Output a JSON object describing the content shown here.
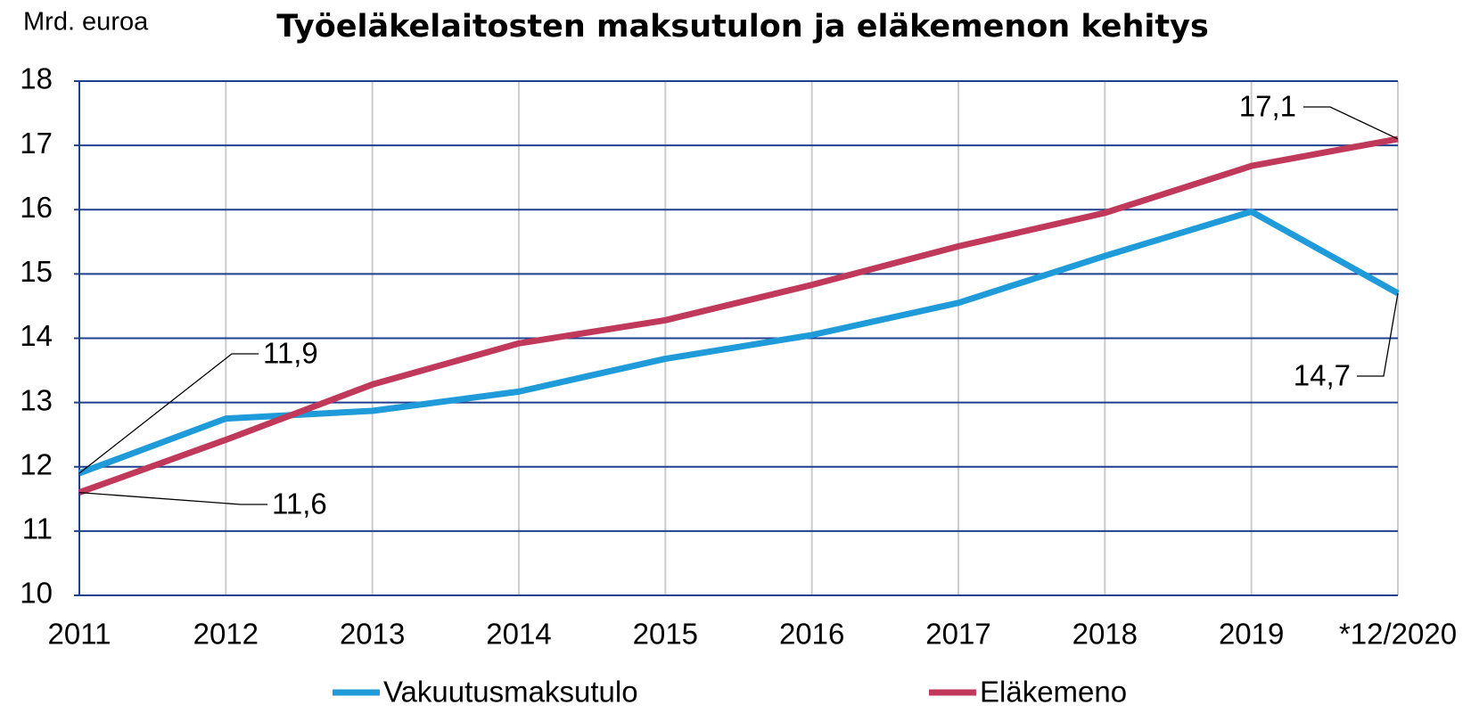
{
  "chart_data": {
    "type": "line",
    "title": "Työeläkelaitosten maksutulon ja eläkemenon kehitys",
    "y_label": "Mrd. euroa",
    "categories": [
      "2011",
      "2012",
      "2013",
      "2014",
      "2015",
      "2016",
      "2017",
      "2018",
      "2019",
      "*12/2020"
    ],
    "series": [
      {
        "name": "Vakuutusmaksutulo",
        "color": "#1f9bd9",
        "values": [
          11.9,
          12.75,
          12.87,
          13.17,
          13.68,
          14.05,
          14.55,
          15.28,
          15.97,
          14.7
        ],
        "value_labels": [
          "11,9",
          null,
          null,
          null,
          null,
          null,
          null,
          null,
          null,
          "14,7"
        ]
      },
      {
        "name": "Eläkemeno",
        "color": "#c0395a",
        "values": [
          11.6,
          12.42,
          13.28,
          13.92,
          14.28,
          14.83,
          15.43,
          15.95,
          16.68,
          17.1
        ],
        "value_labels": [
          "11,6",
          null,
          null,
          null,
          null,
          null,
          null,
          null,
          null,
          "17,1"
        ]
      }
    ],
    "ylim": [
      10,
      18
    ],
    "yticks": [
      10,
      11,
      12,
      13,
      14,
      15,
      16,
      17,
      18
    ],
    "grid": true
  }
}
